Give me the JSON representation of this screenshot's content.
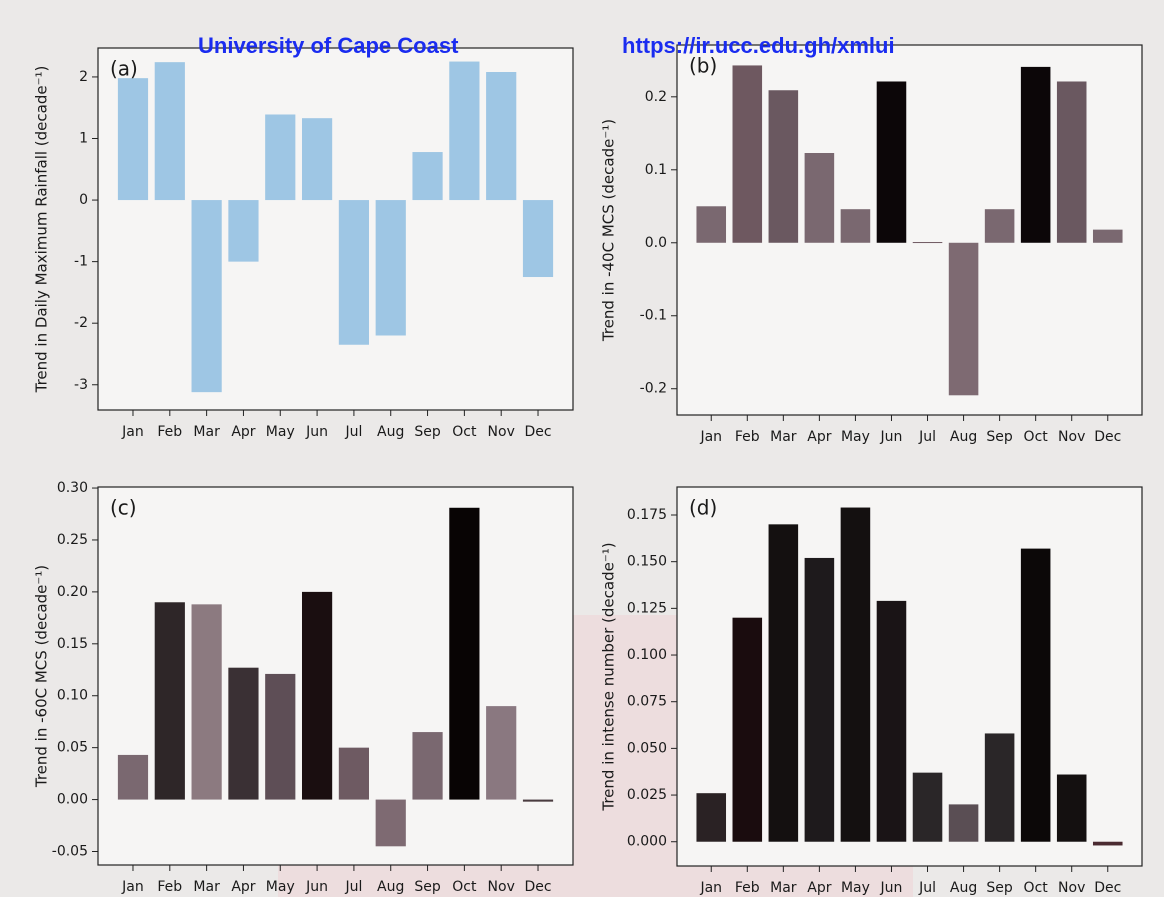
{
  "header": {
    "left": "University of Cape Coast",
    "right": "https://ir.ucc.edu.gh/xmlui"
  },
  "chart_data": [
    {
      "type": "bar",
      "label": "(a)",
      "y_label": "Trend in Daily Maximum Rainfall (decade⁻¹)",
      "categories": [
        "Jan",
        "Feb",
        "Mar",
        "Apr",
        "May",
        "Jun",
        "Jul",
        "Aug",
        "Sep",
        "Oct",
        "Nov",
        "Dec"
      ],
      "values": [
        1.98,
        2.24,
        -3.12,
        -1.0,
        1.39,
        1.33,
        -2.35,
        -2.2,
        0.78,
        2.25,
        2.08,
        -1.25
      ],
      "color": "#9ec6e4",
      "ylim": [
        -3.41,
        2.47
      ],
      "yticks": [
        -3,
        -2,
        -1,
        0,
        1,
        2
      ]
    },
    {
      "type": "bar",
      "label": "(b)",
      "y_label": "Trend in -40C MCS (decade⁻¹)",
      "categories": [
        "Jan",
        "Feb",
        "Mar",
        "Apr",
        "May",
        "Jun",
        "Jul",
        "Aug",
        "Sep",
        "Oct",
        "Nov",
        "Dec"
      ],
      "values": [
        0.05,
        0.243,
        0.209,
        0.123,
        0.046,
        0.221,
        0.001,
        -0.209,
        0.046,
        0.241,
        0.221,
        0.018
      ],
      "colors": [
        "#7a6870",
        "#6e5860",
        "#6a5860",
        "#7a6870",
        "#7a6870",
        "#0c0608",
        "#6e5860",
        "#7e6a72",
        "#7a6870",
        "#0c0608",
        "#6a5860",
        "#7a6870"
      ],
      "ylim": [
        -0.236,
        0.271
      ],
      "yticks": [
        -0.2,
        -0.1,
        {
          "value": 0,
          "label": "0.0"
        },
        0.1,
        0.2
      ]
    },
    {
      "type": "bar",
      "label": "(c)",
      "y_label": "Trend in -60C MCS (decade⁻¹)",
      "categories": [
        "Jan",
        "Feb",
        "Mar",
        "Apr",
        "May",
        "Jun",
        "Jul",
        "Aug",
        "Sep",
        "Oct",
        "Nov",
        "Dec"
      ],
      "values": [
        0.043,
        0.19,
        0.188,
        0.127,
        0.121,
        0.2,
        0.05,
        -0.045,
        0.065,
        0.281,
        0.09,
        -0.002
      ],
      "colors": [
        "#7a6870",
        "#2e2628",
        "#8c7a80",
        "#3a3034",
        "#5e4e56",
        "#1a0e10",
        "#6e5a62",
        "#7e6a72",
        "#7a6870",
        "#080404",
        "#8a7880",
        "#4a3c40"
      ],
      "ylim": [
        -0.063,
        0.301
      ],
      "yticks": [
        -0.05,
        {
          "value": 0,
          "label": "0.00"
        },
        0.05,
        {
          "value": 0.1,
          "label": "0.10"
        },
        0.15,
        {
          "value": 0.2,
          "label": "0.20"
        },
        0.25,
        {
          "value": 0.3,
          "label": "0.30"
        }
      ]
    },
    {
      "type": "bar",
      "label": "(d)",
      "y_label": "Trend in intense number (decade⁻¹)",
      "categories": [
        "Jan",
        "Feb",
        "Mar",
        "Apr",
        "May",
        "Jun",
        "Jul",
        "Aug",
        "Sep",
        "Oct",
        "Nov",
        "Dec"
      ],
      "values": [
        0.026,
        0.12,
        0.17,
        0.152,
        0.179,
        0.129,
        0.037,
        0.02,
        0.058,
        0.157,
        0.036,
        -0.002
      ],
      "colors": [
        "#2a2224",
        "#1a0c0e",
        "#141010",
        "#1e1a1c",
        "#141010",
        "#1a1416",
        "#2a2628",
        "#5a4e54",
        "#2a2628",
        "#0c0808",
        "#141010",
        "#4a2a30"
      ],
      "ylim": [
        -0.013,
        0.19
      ],
      "yticks": [
        {
          "value": 0,
          "label": "0.000"
        },
        0.025,
        {
          "value": 0.05,
          "label": "0.050"
        },
        0.075,
        {
          "value": 0.1,
          "label": "0.100"
        },
        0.125,
        {
          "value": 0.15,
          "label": "0.150"
        },
        0.175
      ]
    }
  ]
}
